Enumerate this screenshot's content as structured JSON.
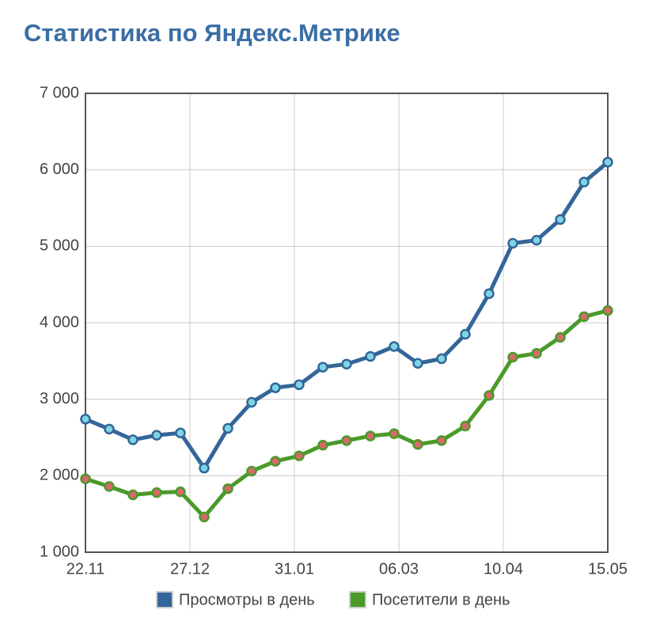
{
  "chart_data": {
    "type": "line",
    "title": "Статистика по Яндекс.Метрике",
    "x": [
      0,
      1,
      2,
      3,
      4,
      5,
      6,
      7,
      8,
      9,
      10,
      11,
      12,
      13,
      14,
      15,
      16,
      17,
      18,
      19,
      20,
      21,
      22
    ],
    "xlim": [
      0,
      22
    ],
    "xticks": [
      {
        "value": 0,
        "label": "22.11"
      },
      {
        "value": 4.4,
        "label": "27.12"
      },
      {
        "value": 8.8,
        "label": "31.01"
      },
      {
        "value": 13.2,
        "label": "06.03"
      },
      {
        "value": 17.6,
        "label": "10.04"
      },
      {
        "value": 22,
        "label": "15.05"
      }
    ],
    "ylim": [
      1000,
      7000
    ],
    "yticks": [
      {
        "value": 1000,
        "label": "1 000"
      },
      {
        "value": 2000,
        "label": "2 000"
      },
      {
        "value": 3000,
        "label": "3 000"
      },
      {
        "value": 4000,
        "label": "4 000"
      },
      {
        "value": 5000,
        "label": "5 000"
      },
      {
        "value": 6000,
        "label": "6 000"
      },
      {
        "value": 7000,
        "label": "7 000"
      }
    ],
    "grid": true,
    "legend": "bottom",
    "series": [
      {
        "name": "Просмотры в день",
        "color": "#336699",
        "marker_color": "#7fd4e4",
        "values": [
          2740,
          2610,
          2470,
          2530,
          2560,
          2100,
          2620,
          2960,
          3150,
          3190,
          3420,
          3460,
          3560,
          3690,
          3470,
          3530,
          3850,
          4380,
          5040,
          5080,
          5350,
          5840,
          6100
        ]
      },
      {
        "name": "Посетители в день",
        "color": "#4a9a2a",
        "marker_color": "#d46a6a",
        "values": [
          1960,
          1860,
          1750,
          1780,
          1790,
          1460,
          1830,
          2060,
          2190,
          2260,
          2400,
          2460,
          2520,
          2550,
          2410,
          2460,
          2650,
          3050,
          3550,
          3600,
          3810,
          4080,
          4160
        ]
      }
    ]
  }
}
